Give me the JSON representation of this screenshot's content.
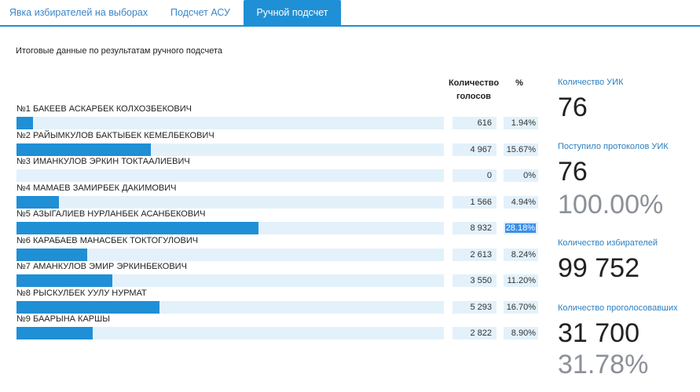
{
  "tabs": [
    {
      "label": "Явка избирателей на выборах"
    },
    {
      "label": "Подсчет АСУ"
    },
    {
      "label": "Ручной подсчет"
    }
  ],
  "subtitle": "Итоговые данные по результатам ручного подсчета",
  "table_headers": {
    "votes": "Количество голосов",
    "percent": "%"
  },
  "candidates": [
    {
      "name": "№1 БАКЕЕВ АСКАРБЕК КОЛХОЗБЕКОВИЧ",
      "votes": "616",
      "percent": "1.94%",
      "share": 1.94
    },
    {
      "name": "№2 РАЙЫМКУЛОВ БАКТЫБЕК КЕМЕЛБЕКОВИЧ",
      "votes": "4 967",
      "percent": "15.67%",
      "share": 15.67
    },
    {
      "name": "№3 ИМАНКУЛОВ ЭРКИН ТОКТААЛИЕВИЧ",
      "votes": "0",
      "percent": "0%",
      "share": 0
    },
    {
      "name": "№4 МАМАЕВ ЗАМИРБЕК ДАКИМОВИЧ",
      "votes": "1 566",
      "percent": "4.94%",
      "share": 4.94
    },
    {
      "name": "№5 АЗЫГАЛИЕВ НУРЛАНБЕК АСАНБЕКОВИЧ",
      "votes": "8 932",
      "percent": "28.18%",
      "share": 28.18
    },
    {
      "name": "№6 КАРАБАЕВ МАНАСБЕК ТОКТОГУЛОВИЧ",
      "votes": "2 613",
      "percent": "8.24%",
      "share": 8.24
    },
    {
      "name": "№7 АМАНКУЛОВ ЭМИР ЭРКИНБЕКОВИЧ",
      "votes": "3 550",
      "percent": "11.20%",
      "share": 11.2
    },
    {
      "name": "№8 РЫСКУЛБЕК УУЛУ НУРМАТ",
      "votes": "5 293",
      "percent": "16.70%",
      "share": 16.7
    },
    {
      "name": "№9 БААРЫНА КАРШЫ",
      "votes": "2 822",
      "percent": "8.90%",
      "share": 8.9
    }
  ],
  "highlighted_index": 4,
  "stats": {
    "uik_label": "Количество УИК",
    "uik_value": "76",
    "protocols_label": "Поступило протоколов УИК",
    "protocols_value": "76",
    "protocols_pct": "100.00%",
    "voters_label": "Количество избирателей",
    "voters_value": "99 752",
    "voted_label": "Количество проголосовавших",
    "voted_value": "31 700",
    "voted_pct": "31.78%"
  },
  "colors": {
    "accent": "#1f8fd6",
    "track": "#e3f1fb",
    "stat_label": "#2a7fc1",
    "muted": "#8c9198"
  }
}
